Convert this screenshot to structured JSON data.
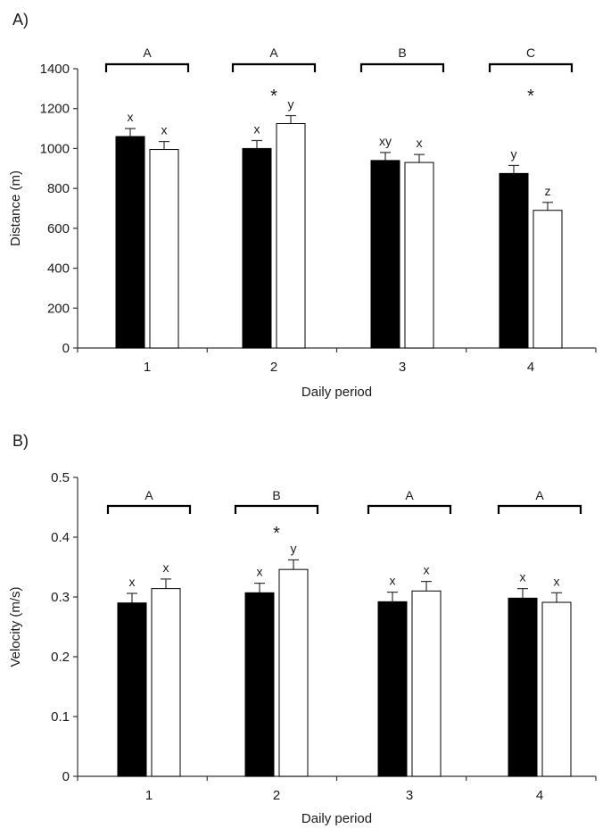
{
  "chart_data": [
    {
      "type": "bar",
      "panel_label": "A)",
      "title": "",
      "xlabel": "Daily period",
      "ylabel": "Distance (m)",
      "ylim": [
        0,
        1400
      ],
      "yticks": [
        0,
        200,
        400,
        600,
        800,
        1000,
        1200,
        1400
      ],
      "categories": [
        "1",
        "2",
        "3",
        "4"
      ],
      "series": [
        {
          "name": "black bars",
          "color": "#000000",
          "values": [
            1060,
            1000,
            940,
            875
          ],
          "errors": [
            40,
            40,
            40,
            40
          ],
          "letters": [
            "x",
            "x",
            "xy",
            "y"
          ]
        },
        {
          "name": "white bars",
          "color": "#ffffff",
          "values": [
            995,
            1125,
            930,
            690
          ],
          "errors": [
            40,
            40,
            40,
            40
          ],
          "letters": [
            "x",
            "y",
            "x",
            "z"
          ]
        }
      ],
      "group_letters": [
        "A",
        "A",
        "B",
        "C"
      ],
      "asterisks": [
        "",
        "*",
        "",
        "*"
      ],
      "grid": false
    },
    {
      "type": "bar",
      "panel_label": "B)",
      "title": "",
      "xlabel": "Daily period",
      "ylabel": "Velocity (m/s)",
      "ylim": [
        0,
        0.5
      ],
      "yticks": [
        "0",
        "0.1",
        "0.2",
        "0.3",
        "0.4",
        "0.5"
      ],
      "categories": [
        "1",
        "2",
        "3",
        "4"
      ],
      "series": [
        {
          "name": "black bars",
          "color": "#000000",
          "values": [
            0.29,
            0.307,
            0.292,
            0.298
          ],
          "errors": [
            0.016,
            0.016,
            0.016,
            0.016
          ],
          "letters": [
            "x",
            "x",
            "x",
            "x"
          ]
        },
        {
          "name": "white bars",
          "color": "#ffffff",
          "values": [
            0.314,
            0.346,
            0.31,
            0.291
          ],
          "errors": [
            0.016,
            0.016,
            0.016,
            0.016
          ],
          "letters": [
            "x",
            "y",
            "x",
            "x"
          ]
        }
      ],
      "group_letters": [
        "A",
        "B",
        "A",
        "A"
      ],
      "asterisks": [
        "",
        "*",
        "",
        ""
      ],
      "grid": false
    }
  ]
}
